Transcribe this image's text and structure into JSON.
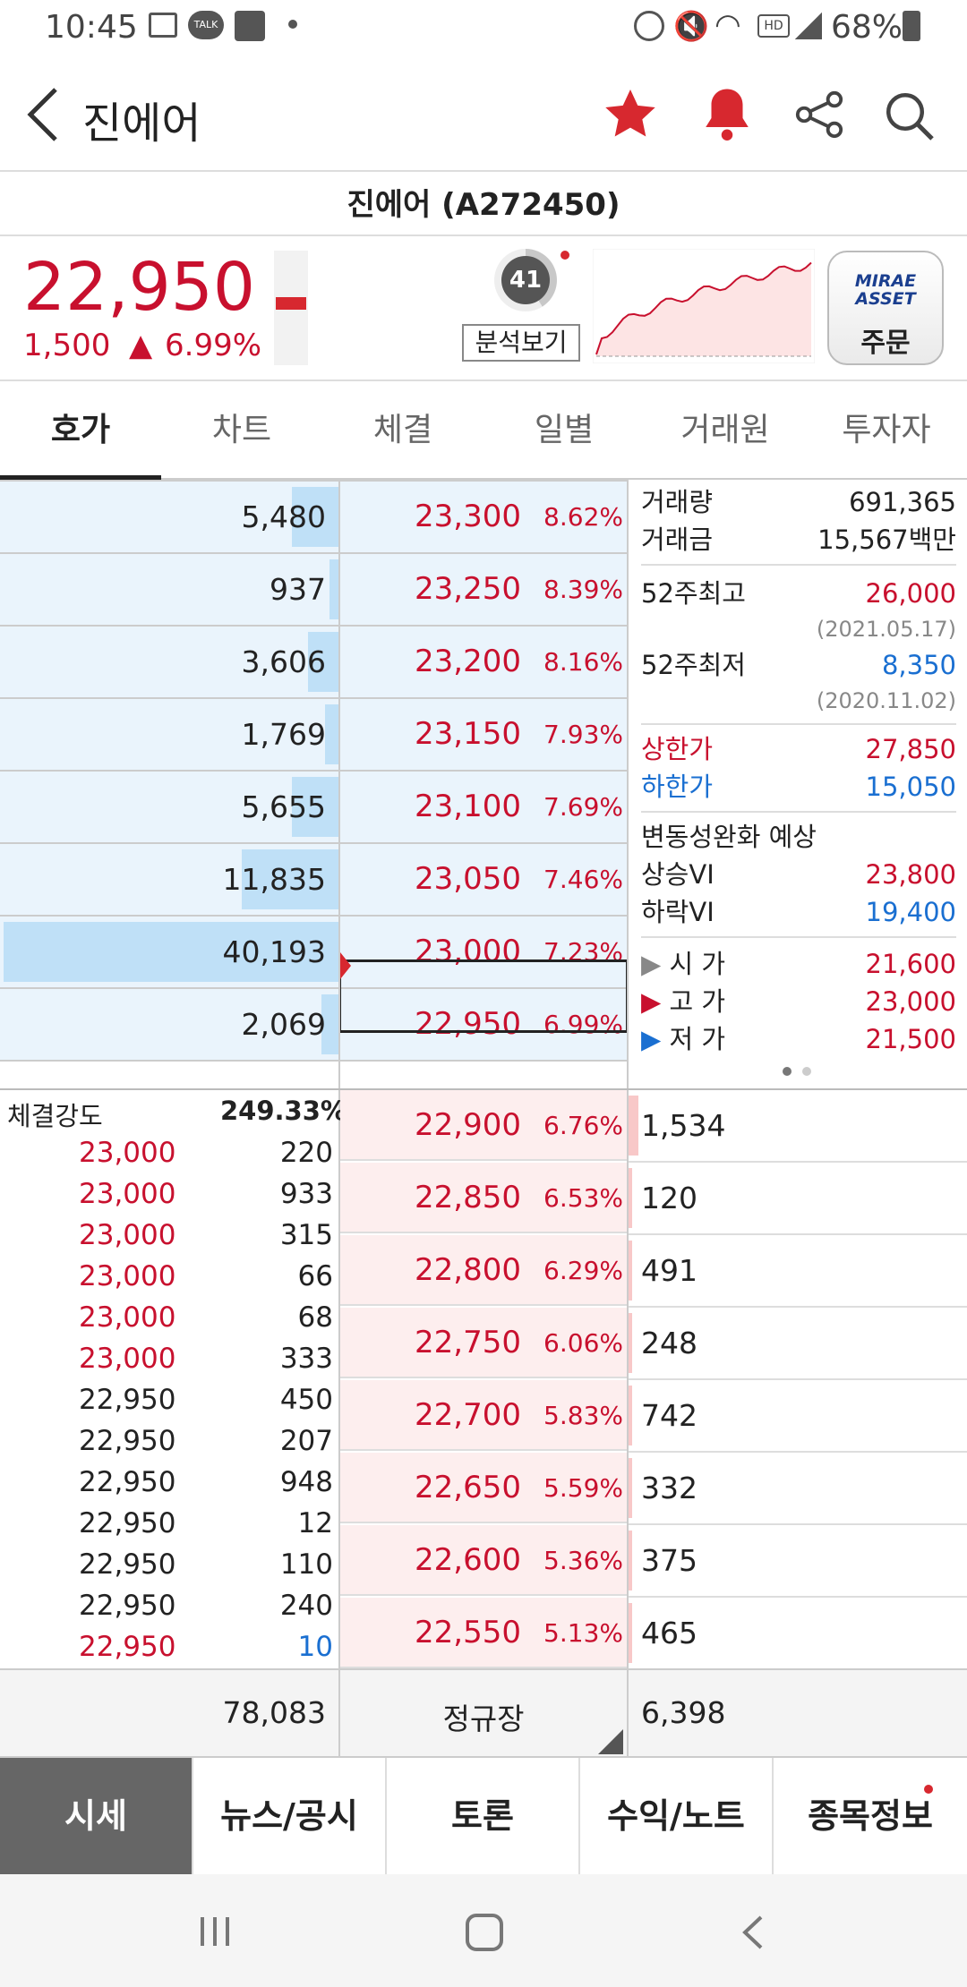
{
  "status": {
    "time": "10:45",
    "battery": "68%"
  },
  "header": {
    "title": "진에어"
  },
  "stock": {
    "name_code": "진에어 (A272450)",
    "price": "22,950",
    "change": "1,500",
    "change_pct": "6.99%",
    "analysis_score": "41",
    "analysis_label": "분석보기",
    "broker_logo_line1": "MIRAE",
    "broker_logo_line2": "ASSET",
    "order_label": "주문"
  },
  "tabs": [
    "호가",
    "차트",
    "체결",
    "일별",
    "거래원",
    "투자자"
  ],
  "asks": [
    {
      "vol": "5,480",
      "price": "23,300",
      "pct": "8.62%",
      "fill": 0.14
    },
    {
      "vol": "937",
      "price": "23,250",
      "pct": "8.39%",
      "fill": 0.02
    },
    {
      "vol": "3,606",
      "price": "23,200",
      "pct": "8.16%",
      "fill": 0.09
    },
    {
      "vol": "1,769",
      "price": "23,150",
      "pct": "7.93%",
      "fill": 0.04
    },
    {
      "vol": "5,655",
      "price": "23,100",
      "pct": "7.69%",
      "fill": 0.14
    },
    {
      "vol": "11,835",
      "price": "23,050",
      "pct": "7.46%",
      "fill": 0.29
    },
    {
      "vol": "40,193",
      "price": "23,000",
      "pct": "7.23%",
      "fill": 1.0
    },
    {
      "vol": "2,069",
      "price": "22,950",
      "pct": "6.99%",
      "fill": 0.05
    }
  ],
  "bids": [
    {
      "vol": "1,534",
      "price": "22,900",
      "pct": "6.76%",
      "fill": 0.03
    },
    {
      "vol": "120",
      "price": "22,850",
      "pct": "6.53%",
      "fill": 0.0
    },
    {
      "vol": "491",
      "price": "22,800",
      "pct": "6.29%",
      "fill": 0.01
    },
    {
      "vol": "248",
      "price": "22,750",
      "pct": "6.06%",
      "fill": 0.0
    },
    {
      "vol": "742",
      "price": "22,700",
      "pct": "5.83%",
      "fill": 0.01
    },
    {
      "vol": "332",
      "price": "22,650",
      "pct": "5.59%",
      "fill": 0.0
    },
    {
      "vol": "375",
      "price": "22,600",
      "pct": "5.36%",
      "fill": 0.0
    },
    {
      "vol": "465",
      "price": "22,550",
      "pct": "5.13%",
      "fill": 0.01
    }
  ],
  "strength": {
    "label": "체결강도",
    "value": "249.33%"
  },
  "trades": [
    {
      "price": "23,000",
      "qty": "220",
      "pc": "red",
      "qc": "dark"
    },
    {
      "price": "23,000",
      "qty": "933",
      "pc": "red",
      "qc": "dark"
    },
    {
      "price": "23,000",
      "qty": "315",
      "pc": "red",
      "qc": "dark"
    },
    {
      "price": "23,000",
      "qty": "66",
      "pc": "red",
      "qc": "dark"
    },
    {
      "price": "23,000",
      "qty": "68",
      "pc": "red",
      "qc": "dark"
    },
    {
      "price": "23,000",
      "qty": "333",
      "pc": "red",
      "qc": "dark"
    },
    {
      "price": "22,950",
      "qty": "450",
      "pc": "dark",
      "qc": "dark"
    },
    {
      "price": "22,950",
      "qty": "207",
      "pc": "dark",
      "qc": "dark"
    },
    {
      "price": "22,950",
      "qty": "948",
      "pc": "dark",
      "qc": "dark"
    },
    {
      "price": "22,950",
      "qty": "12",
      "pc": "dark",
      "qc": "dark"
    },
    {
      "price": "22,950",
      "qty": "110",
      "pc": "dark",
      "qc": "dark"
    },
    {
      "price": "22,950",
      "qty": "240",
      "pc": "dark",
      "qc": "dark"
    },
    {
      "price": "22,950",
      "qty": "10",
      "pc": "red",
      "qc": "blue"
    }
  ],
  "info": {
    "volume_label": "거래량",
    "volume": "691,365",
    "amount_label": "거래금",
    "amount": "15,567백만",
    "high52_label": "52주최고",
    "high52": "26,000",
    "high52_date": "(2021.05.17)",
    "low52_label": "52주최저",
    "low52": "8,350",
    "low52_date": "(2020.11.02)",
    "upper_label": "상한가",
    "upper": "27,850",
    "lower_label": "하한가",
    "lower": "15,050",
    "vi_label": "변동성완화 예상",
    "vi_up_label": "상승VI",
    "vi_up": "23,800",
    "vi_down_label": "하락VI",
    "vi_down": "19,400",
    "open_label": "시 가",
    "open": "21,600",
    "high_label": "고 가",
    "high": "23,000",
    "low_label": "저 가",
    "low": "21,500"
  },
  "summary": {
    "ask_total": "78,083",
    "session": "정규장",
    "bid_total": "6,398"
  },
  "bottom_nav": [
    "시세",
    "뉴스/공시",
    "토론",
    "수익/노트",
    "종목정보"
  ],
  "colors": {
    "up": "#c8102e",
    "down": "#1a6fd1",
    "ask_bg": "#eaf4fc",
    "bid_bg": "#fdeeee"
  }
}
